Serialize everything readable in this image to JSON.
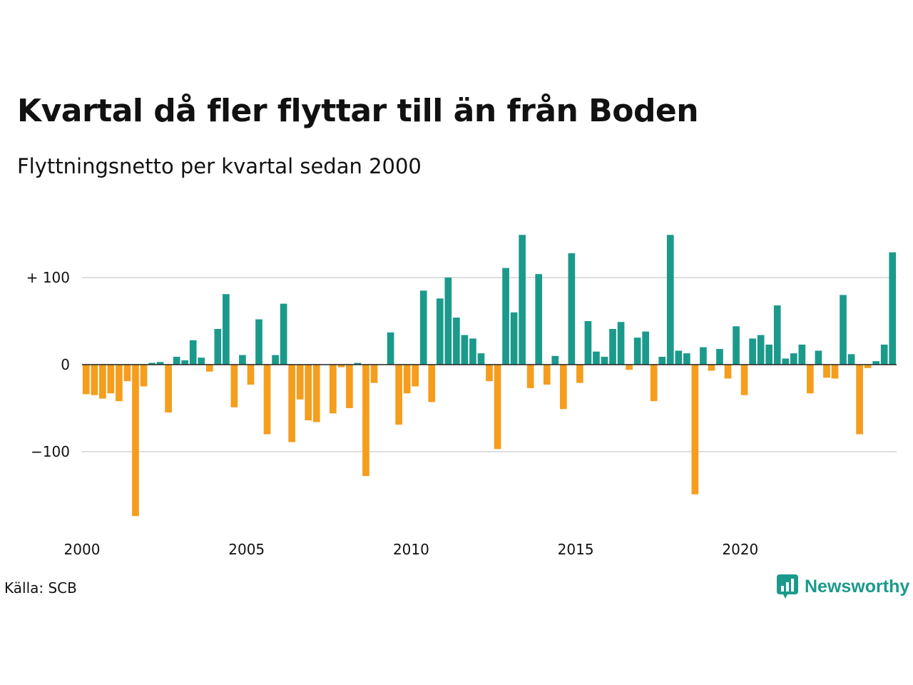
{
  "chart_data": {
    "type": "bar",
    "title": "Kvartal då fler flyttar till än från Boden",
    "subtitle": "Flyttningsnetto per kvartal sedan 2000",
    "x_start_year": 2000,
    "x_step": 0.25,
    "values": [
      -34,
      -35,
      -39,
      -33,
      -42,
      -19,
      -174,
      -25,
      2,
      3,
      -55,
      9,
      5,
      28,
      8,
      -8,
      41,
      81,
      -49,
      11,
      -23,
      52,
      -80,
      11,
      70,
      -89,
      -40,
      -64,
      -66,
      0,
      -56,
      -3,
      -50,
      2,
      -128,
      -21,
      0,
      37,
      -69,
      -33,
      -25,
      85,
      -43,
      76,
      100,
      54,
      34,
      30,
      13,
      -19,
      -97,
      111,
      60,
      149,
      -27,
      104,
      -23,
      10,
      -51,
      128,
      -21,
      50,
      15,
      9,
      41,
      49,
      -6,
      31,
      38,
      -42,
      9,
      149,
      16,
      13,
      -149,
      20,
      -7,
      18,
      -16,
      44,
      -35,
      30,
      34,
      23,
      68,
      7,
      13,
      23,
      -33,
      16,
      -15,
      -16,
      80,
      12,
      -80,
      -4,
      4,
      23,
      129
    ],
    "x_ticks": [
      "2000",
      "2005",
      "2010",
      "2015",
      "2020"
    ],
    "y_ticks": [
      {
        "value": 100,
        "label": "+ 100"
      },
      {
        "value": 0,
        "label": "0"
      },
      {
        "value": -100,
        "label": "−100"
      }
    ],
    "ylim": [
      -180,
      150
    ],
    "grid": true,
    "colors": {
      "positive": "#1b9a8c",
      "negative": "#f59d1c",
      "grid": "#dedede",
      "zero_line": "#222222"
    }
  },
  "footer": {
    "source": "Källa: SCB",
    "brand": "Newsworthy"
  }
}
